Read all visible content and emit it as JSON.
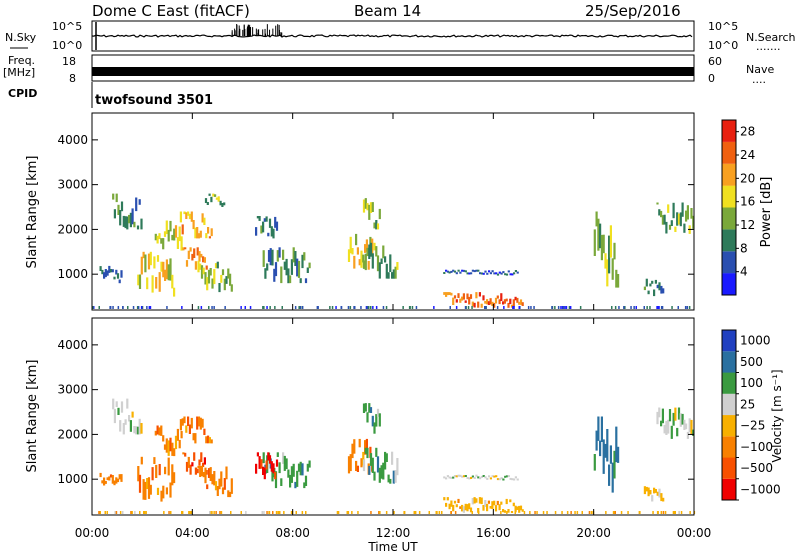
{
  "header": {
    "station": "Dome C East (fitACF)",
    "beam": "Beam 14",
    "date": "25/Sep/2016"
  },
  "left_labels": {
    "nsky": "N.Sky",
    "freq_line1": "Freq.",
    "freq_line2": "[MHz]",
    "cpid": "CPID"
  },
  "right_labels": {
    "nsearch": "N.Search",
    "nsearch_dots": ".......",
    "nave": "Nave",
    "nave_dots": "...."
  },
  "noise_panel": {
    "left_ticks": [
      "10^5",
      "10^0"
    ],
    "right_ticks": [
      "10^5",
      "10^0"
    ]
  },
  "freq_panel": {
    "left_ticks": [
      "18",
      "8"
    ],
    "right_ticks": [
      "60",
      "0"
    ]
  },
  "cpid_panel": {
    "text": "twofsound 3501"
  },
  "colors": {
    "power": [
      "#1a1aff",
      "#2a4fb0",
      "#2e7a5a",
      "#7aa83a",
      "#f0e020",
      "#f8a020",
      "#f06010",
      "#e82010"
    ],
    "velocity": [
      "#f00000",
      "#f85000",
      "#f88000",
      "#f8b000",
      "#d0d0d0",
      "#3a9a40",
      "#2a70a0",
      "#2040c0"
    ]
  },
  "chart_data": [
    {
      "type": "heatmap",
      "name": "Power",
      "xlabel": "",
      "ylabel": "Slant Range [km]",
      "yticks": [
        "1000",
        "2000",
        "3000",
        "4000"
      ],
      "ylim": [
        200,
        4600
      ],
      "xlim": [
        0,
        24
      ],
      "xticks": [
        "00:00",
        "04:00",
        "08:00",
        "12:00",
        "16:00",
        "20:00",
        "00:00"
      ],
      "colorbar": {
        "label": "Power [dB]",
        "ticks": [
          "4",
          "8",
          "12",
          "16",
          "20",
          "24",
          "28"
        ],
        "range": [
          0,
          30
        ]
      },
      "regions": [
        {
          "t0": 0.3,
          "t1": 1.2,
          "r0": 800,
          "r1": 1200,
          "v": 8
        },
        {
          "t0": 0.8,
          "t1": 2.0,
          "r0": 2000,
          "r1": 2800,
          "v": 10
        },
        {
          "t0": 1.8,
          "t1": 3.3,
          "r0": 500,
          "r1": 1500,
          "v": 18
        },
        {
          "t0": 2.5,
          "t1": 3.6,
          "r0": 1500,
          "r1": 2200,
          "v": 16
        },
        {
          "t0": 3.5,
          "t1": 4.8,
          "r0": 1800,
          "r1": 2400,
          "v": 20
        },
        {
          "t0": 3.6,
          "t1": 4.6,
          "r0": 1100,
          "r1": 1600,
          "v": 22
        },
        {
          "t0": 4.2,
          "t1": 5.6,
          "r0": 600,
          "r1": 1300,
          "v": 14
        },
        {
          "t0": 4.5,
          "t1": 5.3,
          "r0": 2500,
          "r1": 2800,
          "v": 12
        },
        {
          "t0": 6.8,
          "t1": 8.7,
          "r0": 800,
          "r1": 1600,
          "v": 10
        },
        {
          "t0": 6.5,
          "t1": 7.4,
          "r0": 1800,
          "r1": 2300,
          "v": 8
        },
        {
          "t0": 10.2,
          "t1": 11.2,
          "r0": 1100,
          "r1": 1900,
          "v": 18
        },
        {
          "t0": 10.8,
          "t1": 12.2,
          "r0": 900,
          "r1": 1700,
          "v": 12
        },
        {
          "t0": 10.8,
          "t1": 11.5,
          "r0": 2000,
          "r1": 2700,
          "v": 14
        },
        {
          "t0": 14.0,
          "t1": 17.0,
          "r0": 1000,
          "r1": 1100,
          "v": 6
        },
        {
          "t0": 14.0,
          "t1": 17.2,
          "r0": 250,
          "r1": 600,
          "v": 24
        },
        {
          "t0": 20.0,
          "t1": 21.0,
          "r0": 700,
          "r1": 2400,
          "v": 14
        },
        {
          "t0": 22.0,
          "t1": 22.8,
          "r0": 500,
          "r1": 900,
          "v": 8
        },
        {
          "t0": 22.5,
          "t1": 24.0,
          "r0": 1900,
          "r1": 2600,
          "v": 12
        }
      ]
    },
    {
      "type": "heatmap",
      "name": "Velocity",
      "xlabel": "Time UT",
      "ylabel": "Slant Range [km]",
      "yticks": [
        "1000",
        "2000",
        "3000",
        "4000"
      ],
      "ylim": [
        200,
        4600
      ],
      "xlim": [
        0,
        24
      ],
      "xticks": [
        "00:00",
        "04:00",
        "08:00",
        "12:00",
        "16:00",
        "20:00",
        "00:00"
      ],
      "colorbar": {
        "label": "Velocity [m s⁻¹]",
        "ticks": [
          "1000",
          "500",
          "100",
          "25",
          "−25",
          "−100",
          "−500",
          "−1000"
        ]
      },
      "regions": [
        {
          "t0": 0.3,
          "t1": 1.2,
          "r0": 800,
          "r1": 1200,
          "c": 2
        },
        {
          "t0": 0.8,
          "t1": 2.0,
          "r0": 2000,
          "r1": 2800,
          "c": 4
        },
        {
          "t0": 1.8,
          "t1": 3.3,
          "r0": 500,
          "r1": 1500,
          "c": 2
        },
        {
          "t0": 2.5,
          "t1": 3.6,
          "r0": 1500,
          "r1": 2200,
          "c": 2
        },
        {
          "t0": 3.5,
          "t1": 4.8,
          "r0": 1800,
          "r1": 2400,
          "c": 2
        },
        {
          "t0": 3.6,
          "t1": 4.6,
          "r0": 1100,
          "r1": 1600,
          "c": 1
        },
        {
          "t0": 4.2,
          "t1": 5.6,
          "r0": 600,
          "r1": 1300,
          "c": 2
        },
        {
          "t0": 6.8,
          "t1": 8.7,
          "r0": 800,
          "r1": 1600,
          "c": 5
        },
        {
          "t0": 6.5,
          "t1": 7.4,
          "r0": 1000,
          "r1": 1600,
          "c": 0
        },
        {
          "t0": 10.2,
          "t1": 11.2,
          "r0": 1100,
          "r1": 1900,
          "c": 2
        },
        {
          "t0": 10.8,
          "t1": 12.2,
          "r0": 900,
          "r1": 1700,
          "c": 5
        },
        {
          "t0": 10.8,
          "t1": 11.5,
          "r0": 2000,
          "r1": 2700,
          "c": 5
        },
        {
          "t0": 14.0,
          "t1": 17.0,
          "r0": 1000,
          "r1": 1100,
          "c": 4
        },
        {
          "t0": 14.0,
          "t1": 17.2,
          "r0": 250,
          "r1": 600,
          "c": 3
        },
        {
          "t0": 20.0,
          "t1": 21.0,
          "r0": 700,
          "r1": 2400,
          "c": 6
        },
        {
          "t0": 22.0,
          "t1": 22.8,
          "r0": 500,
          "r1": 900,
          "c": 3
        },
        {
          "t0": 22.5,
          "t1": 24.0,
          "r0": 1900,
          "r1": 2600,
          "c": 4
        }
      ]
    }
  ]
}
